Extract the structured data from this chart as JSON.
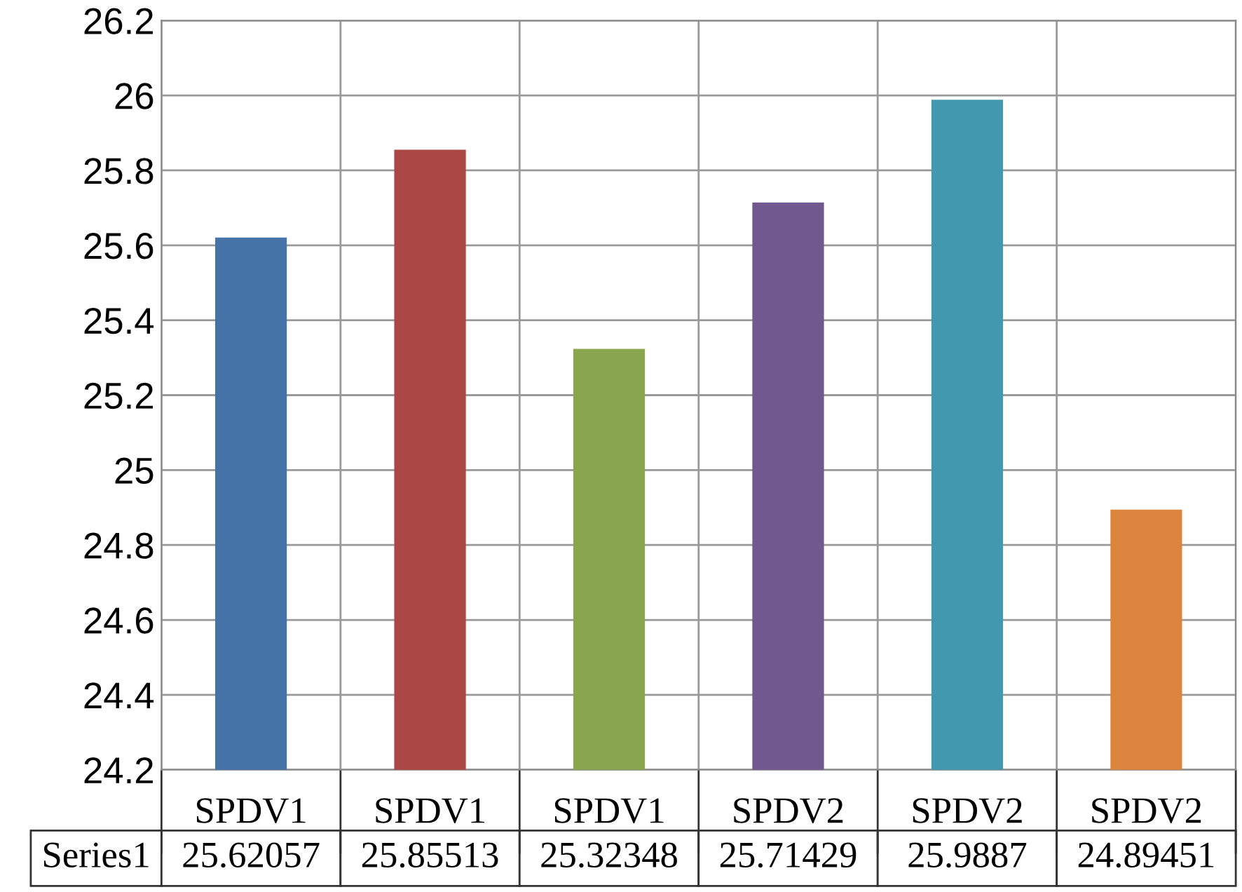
{
  "chart_data": {
    "type": "bar",
    "categories": [
      "SPDV1",
      "SPDV1",
      "SPDV1",
      "SPDV2",
      "SPDV2",
      "SPDV2"
    ],
    "series": [
      {
        "name": "Series1",
        "colors": [
          "#4572a7",
          "#aa4643",
          "#89a54e",
          "#71588f",
          "#4198af",
          "#db843d"
        ],
        "values": [
          25.62057,
          25.85513,
          25.32348,
          25.71429,
          25.9887,
          24.89451
        ],
        "value_labels": [
          "25.62057",
          "25.85513",
          "25.32348",
          "25.71429",
          "25.9887",
          "24.89451"
        ]
      }
    ],
    "ylim": [
      24.2,
      26.2
    ],
    "yticks": [
      {
        "value": 24.2,
        "label": "24.2"
      },
      {
        "value": 24.4,
        "label": "24.4"
      },
      {
        "value": 24.6,
        "label": "24.6"
      },
      {
        "value": 24.8,
        "label": "24.8"
      },
      25,
      {
        "value": 25.2,
        "label": "25.2"
      },
      {
        "value": 25.4,
        "label": "25.4"
      },
      {
        "value": 25.6,
        "label": "25.6"
      },
      {
        "value": 25.8,
        "label": "25.8"
      },
      26,
      {
        "value": 26.2,
        "label": "26.2"
      }
    ],
    "grid": true,
    "legend": false
  }
}
